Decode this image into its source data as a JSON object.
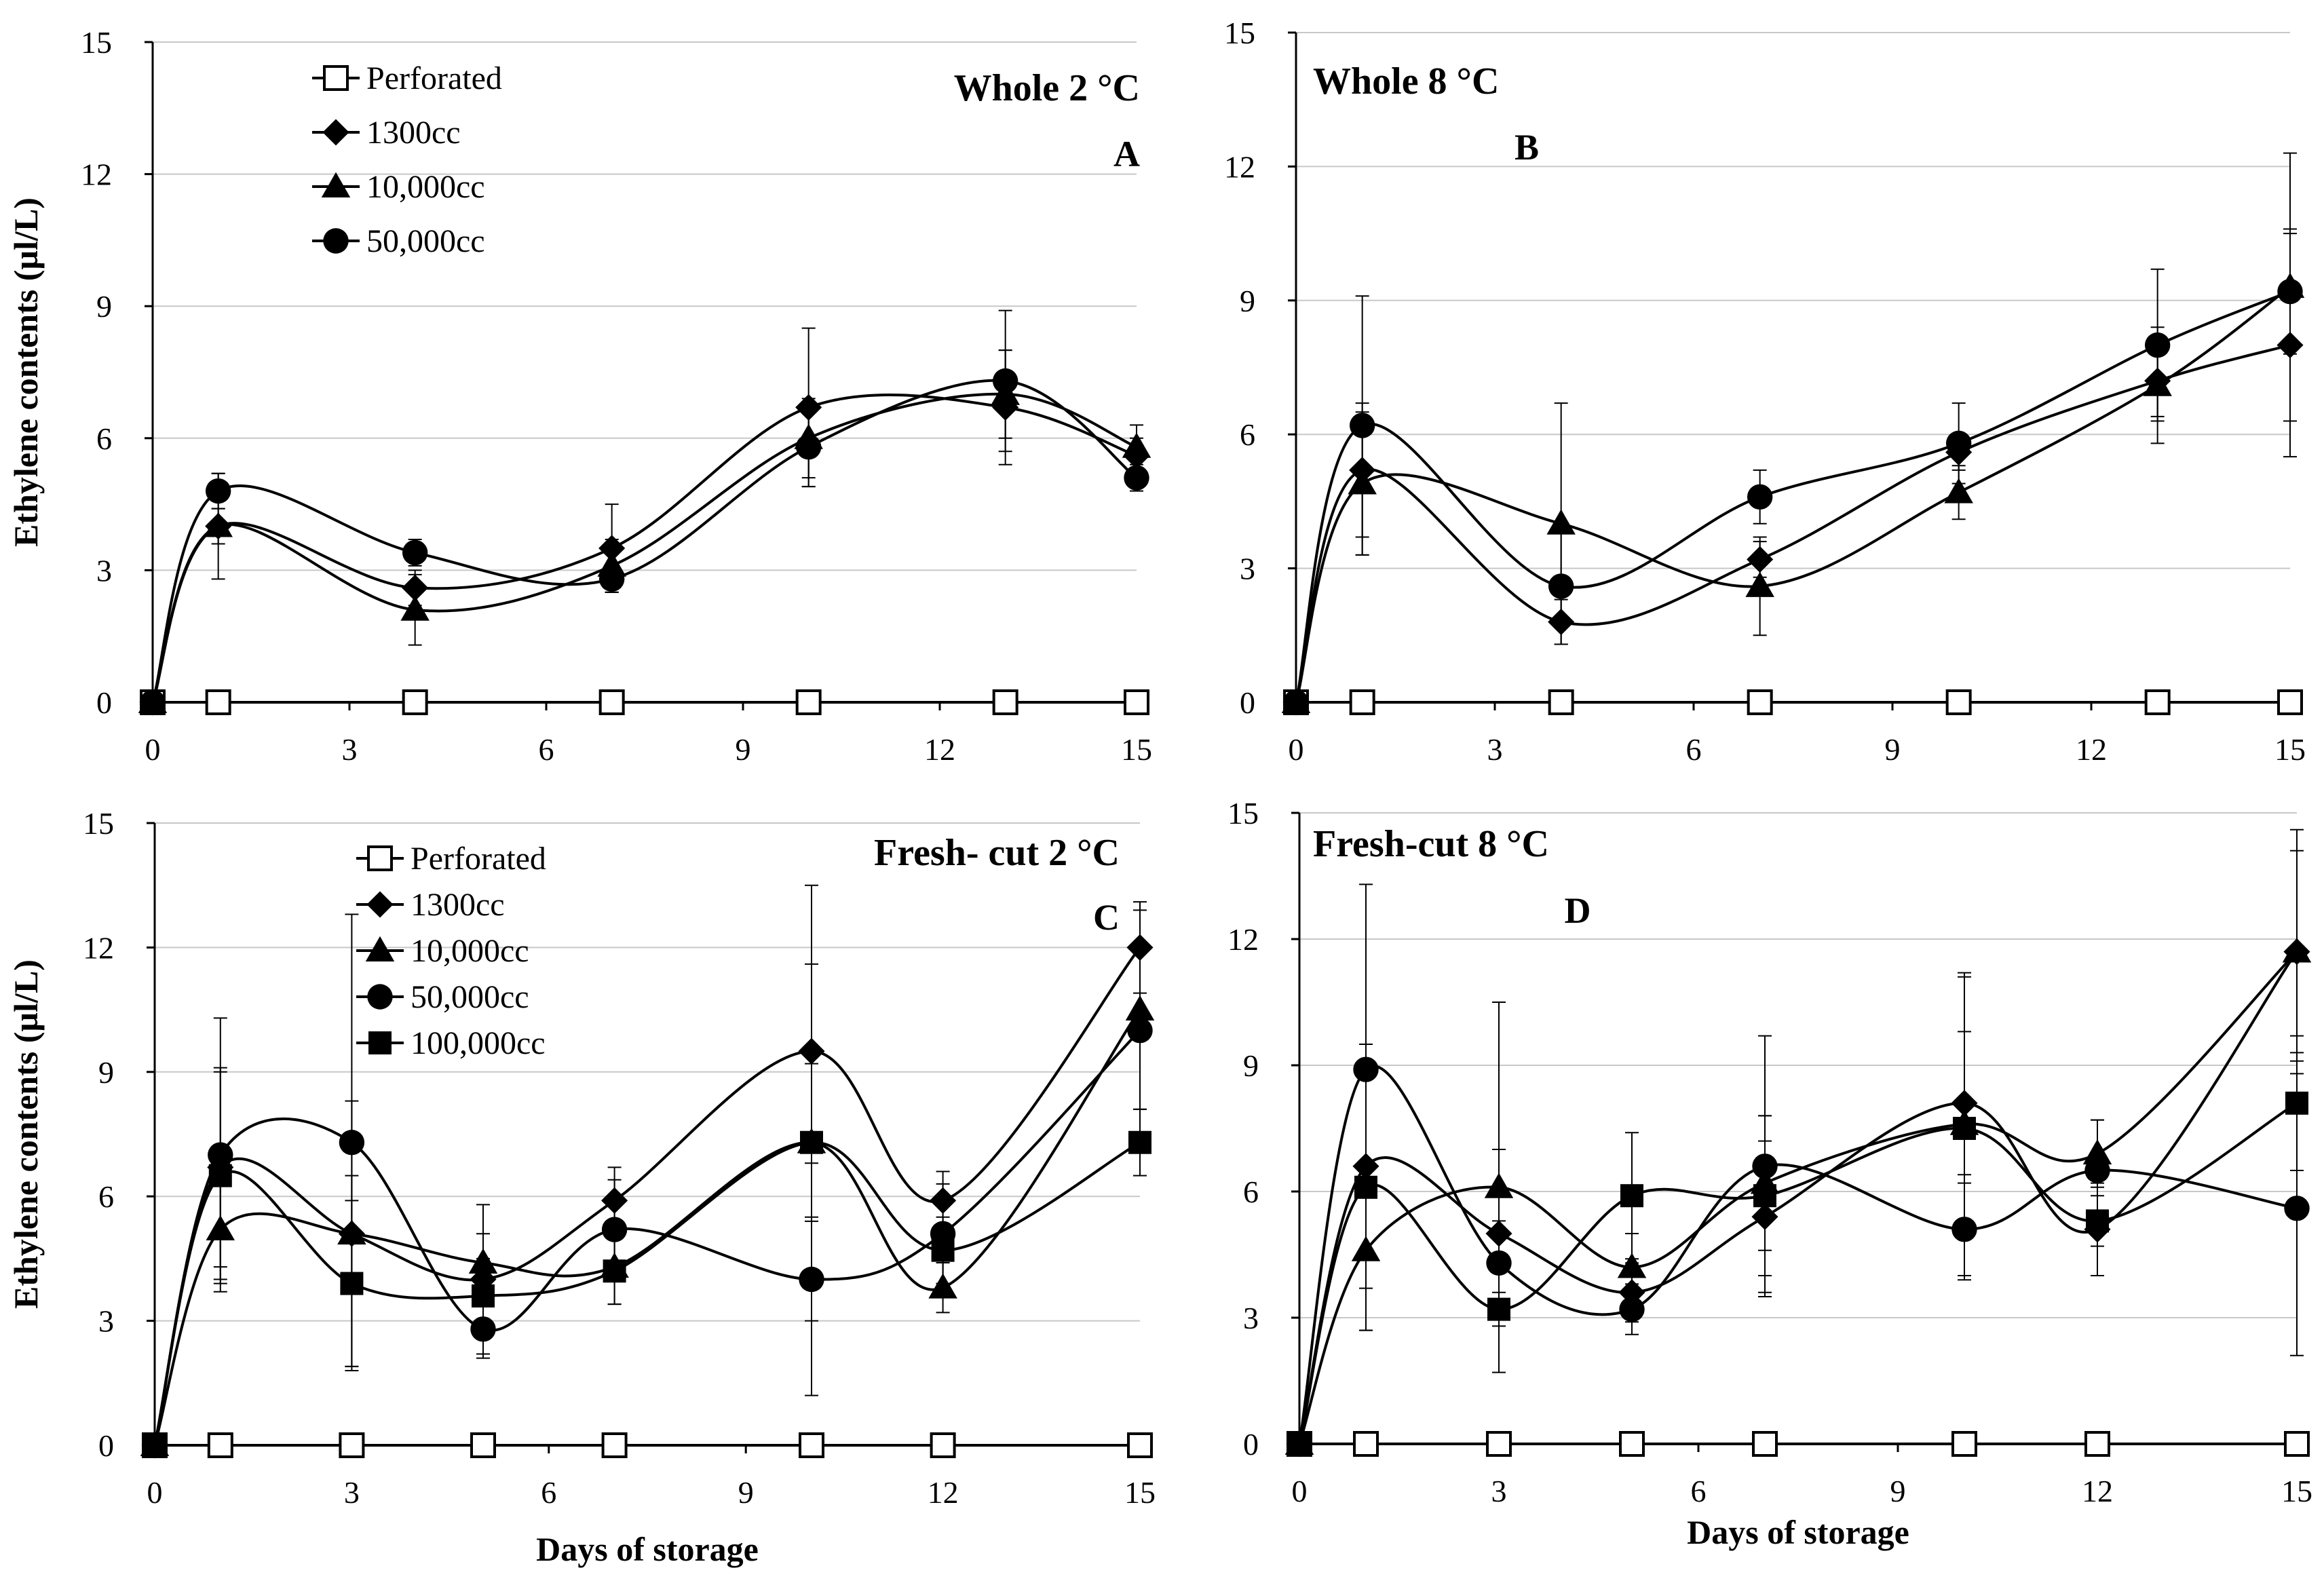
{
  "figure": {
    "shared_ylabel": "Ethylene contents (µl/L)",
    "shared_xlabel": "Days of storage"
  },
  "chart_data": [
    {
      "id": "A",
      "type": "line",
      "title": "Whole 2 °C",
      "letter": "A",
      "xlabel": "",
      "ylabel": "Ethylene contents (µl/L)",
      "xlim": [
        0,
        15
      ],
      "ylim": [
        0,
        15
      ],
      "xticks": [
        0,
        3,
        6,
        9,
        12,
        15
      ],
      "yticks": [
        0,
        3,
        6,
        9,
        12,
        15
      ],
      "grid": "horizontal",
      "legend": "top-left",
      "series": [
        {
          "name": "Perforated",
          "marker": "square-open",
          "x": [
            0,
            1,
            4,
            7,
            10,
            13,
            15
          ],
          "y": [
            0,
            0,
            0,
            0,
            0,
            0,
            0
          ],
          "err": [
            0,
            0,
            0,
            0,
            0,
            0,
            0
          ]
        },
        {
          "name": "1300cc",
          "marker": "diamond",
          "x": [
            0,
            1,
            4,
            7,
            10,
            13,
            15
          ],
          "y": [
            0,
            4.0,
            2.6,
            3.5,
            6.7,
            6.7,
            5.6
          ],
          "err": [
            0,
            0.4,
            0.4,
            1.0,
            1.8,
            1.3,
            0.4
          ]
        },
        {
          "name": "10,000cc",
          "marker": "triangle",
          "x": [
            0,
            1,
            4,
            7,
            10,
            13,
            15
          ],
          "y": [
            0,
            4.0,
            2.1,
            3.1,
            6.0,
            7.0,
            5.8
          ],
          "err": [
            0,
            1.2,
            0.8,
            0.6,
            0.9,
            1.0,
            0.5
          ]
        },
        {
          "name": "50,000cc",
          "marker": "circle",
          "x": [
            0,
            1,
            4,
            7,
            10,
            13,
            15
          ],
          "y": [
            0,
            4.8,
            3.4,
            2.8,
            5.8,
            7.3,
            5.1
          ],
          "err": [
            0,
            0.4,
            0.3,
            0.3,
            0.9,
            1.6,
            0.3
          ]
        }
      ]
    },
    {
      "id": "B",
      "type": "line",
      "title": "Whole 8 °C",
      "letter": "B",
      "xlabel": "",
      "ylabel": "",
      "xlim": [
        0,
        15
      ],
      "ylim": [
        0,
        15
      ],
      "xticks": [
        0,
        3,
        6,
        9,
        12,
        15
      ],
      "yticks": [
        0,
        3,
        6,
        9,
        12,
        15
      ],
      "grid": "horizontal",
      "legend": "none",
      "series": [
        {
          "name": "Perforated",
          "marker": "square-open",
          "x": [
            0,
            1,
            4,
            7,
            10,
            13,
            15
          ],
          "y": [
            0,
            0,
            0,
            0,
            0,
            0,
            0
          ],
          "err": [
            0,
            0,
            0,
            0,
            0,
            0,
            0
          ]
        },
        {
          "name": "1300cc",
          "marker": "diamond",
          "x": [
            0,
            1,
            4,
            7,
            10,
            13,
            15
          ],
          "y": [
            0,
            5.2,
            1.8,
            3.2,
            5.6,
            7.2,
            8.0
          ],
          "err": [
            0,
            1.5,
            0.5,
            0.4,
            0.4,
            0.8,
            2.5
          ]
        },
        {
          "name": "10,000cc",
          "marker": "triangle",
          "x": [
            0,
            1,
            4,
            7,
            10,
            13,
            15
          ],
          "y": [
            0,
            4.9,
            4.0,
            2.6,
            4.7,
            7.1,
            9.3
          ],
          "err": [
            0,
            1.6,
            2.7,
            1.1,
            0.6,
            1.3,
            3.0
          ]
        },
        {
          "name": "50,000cc",
          "marker": "circle",
          "x": [
            0,
            1,
            4,
            7,
            10,
            13,
            15
          ],
          "y": [
            0,
            6.2,
            2.6,
            4.6,
            5.8,
            8.0,
            9.2
          ],
          "err": [
            0,
            2.9,
            1.3,
            0.6,
            0.9,
            1.7,
            1.4
          ]
        }
      ]
    },
    {
      "id": "C",
      "type": "line",
      "title": "Fresh- cut 2 °C",
      "letter": "C",
      "xlabel": "Days of storage",
      "ylabel": "Ethylene contents (µl/L)",
      "xlim": [
        0,
        15
      ],
      "ylim": [
        0,
        15
      ],
      "xticks": [
        0,
        3,
        6,
        9,
        12,
        15
      ],
      "yticks": [
        0,
        3,
        6,
        9,
        12,
        15
      ],
      "grid": "horizontal",
      "legend": "top-left",
      "series": [
        {
          "name": "Perforated",
          "marker": "square-open",
          "x": [
            0,
            1,
            3,
            5,
            7,
            10,
            12,
            15
          ],
          "y": [
            0,
            0,
            0,
            0,
            0,
            0,
            0,
            0
          ],
          "err": [
            0,
            0,
            0,
            0,
            0,
            0,
            0,
            0
          ]
        },
        {
          "name": "1300cc",
          "marker": "diamond",
          "x": [
            0,
            1,
            3,
            5,
            7,
            10,
            12,
            15
          ],
          "y": [
            0,
            6.7,
            5.1,
            4.0,
            5.9,
            9.5,
            5.9,
            12.0
          ],
          "err": [
            0,
            2.4,
            1.4,
            0.5,
            0.8,
            4.0,
            0.7,
            1.1
          ]
        },
        {
          "name": "10,000cc",
          "marker": "triangle",
          "x": [
            0,
            1,
            3,
            5,
            7,
            10,
            12,
            15
          ],
          "y": [
            0,
            5.2,
            5.1,
            4.4,
            4.3,
            7.3,
            3.8,
            10.5
          ],
          "err": [
            0,
            1.3,
            3.2,
            1.4,
            0.9,
            4.3,
            0.6,
            2.4
          ]
        },
        {
          "name": "50,000cc",
          "marker": "circle",
          "x": [
            0,
            1,
            3,
            5,
            7,
            10,
            12,
            15
          ],
          "y": [
            0,
            7.0,
            7.3,
            2.8,
            5.2,
            4.0,
            5.1,
            10.0
          ],
          "err": [
            0,
            3.3,
            5.5,
            0.6,
            1.2,
            2.8,
            1.2,
            1.9
          ]
        },
        {
          "name": "100,000cc",
          "marker": "square",
          "x": [
            0,
            1,
            3,
            5,
            7,
            10,
            12,
            15
          ],
          "y": [
            0,
            6.5,
            3.9,
            3.6,
            4.2,
            7.3,
            4.7,
            7.3
          ],
          "err": [
            0,
            2.5,
            2.0,
            1.5,
            0.8,
            1.9,
            0.8,
            0.8
          ]
        }
      ]
    },
    {
      "id": "D",
      "type": "line",
      "title": "Fresh-cut 8 °C",
      "letter": "D",
      "xlabel": "Days of storage",
      "ylabel": "",
      "xlim": [
        0,
        15
      ],
      "ylim": [
        0,
        15
      ],
      "xticks": [
        0,
        3,
        6,
        9,
        12,
        15
      ],
      "yticks": [
        0,
        3,
        6,
        9,
        12,
        15
      ],
      "grid": "horizontal",
      "legend": "none",
      "series": [
        {
          "name": "Perforated",
          "marker": "square-open",
          "x": [
            0,
            1,
            3,
            5,
            7,
            10,
            12,
            15
          ],
          "y": [
            0,
            0,
            0,
            0,
            0,
            0,
            0,
            0
          ],
          "err": [
            0,
            0,
            0,
            0,
            0,
            0,
            0,
            0
          ]
        },
        {
          "name": "1300cc",
          "marker": "diamond",
          "x": [
            0,
            1,
            3,
            5,
            7,
            10,
            12,
            15
          ],
          "y": [
            0,
            6.6,
            5.0,
            3.6,
            5.4,
            8.1,
            5.1,
            11.7
          ],
          "err": [
            0,
            2.9,
            2.0,
            0.7,
            1.8,
            1.7,
            1.1,
            2.4
          ]
        },
        {
          "name": "10,000cc",
          "marker": "triangle",
          "x": [
            0,
            1,
            3,
            5,
            7,
            10,
            12,
            15
          ],
          "y": [
            0,
            4.6,
            6.1,
            4.2,
            6.2,
            7.6,
            6.9,
            11.7
          ],
          "err": [
            0,
            1.9,
            4.4,
            0.8,
            1.6,
            3.6,
            0.8,
            2.9
          ]
        },
        {
          "name": "50,000cc",
          "marker": "circle",
          "x": [
            0,
            1,
            3,
            5,
            7,
            10,
            12,
            15
          ],
          "y": [
            0,
            8.9,
            4.3,
            3.2,
            6.6,
            5.1,
            6.5,
            5.6
          ],
          "err": [
            0,
            4.4,
            1.0,
            0.6,
            3.1,
            1.1,
            1.2,
            3.5
          ]
        },
        {
          "name": "100,000cc",
          "marker": "square",
          "x": [
            0,
            1,
            3,
            5,
            7,
            10,
            12,
            15
          ],
          "y": [
            0,
            6.1,
            3.2,
            5.9,
            5.9,
            7.5,
            5.3,
            8.1
          ],
          "err": [
            0,
            3.4,
            0.4,
            1.5,
            1.9,
            3.6,
            0.6,
            1.6
          ]
        }
      ]
    }
  ]
}
